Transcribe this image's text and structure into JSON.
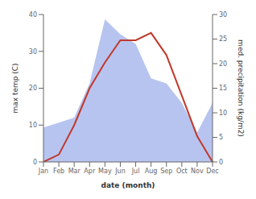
{
  "chart_data": {
    "type": "line",
    "categories": [
      "Jan",
      "Feb",
      "Mar",
      "Apr",
      "May",
      "Jun",
      "Jul",
      "Aug",
      "Sep",
      "Oct",
      "Nov",
      "Dec"
    ],
    "series": [
      {
        "type": "area",
        "axis": "y2",
        "color": "#b8c4f0",
        "values": [
          7,
          8,
          9,
          16,
          29,
          26,
          24,
          17,
          16,
          12,
          6,
          12
        ]
      },
      {
        "type": "line",
        "color": "#c0392b",
        "values": [
          0,
          2,
          10,
          20,
          27,
          33,
          33,
          35,
          29,
          18,
          7,
          0
        ]
      }
    ],
    "xlabel": "date (month)",
    "ylabel": "max temp (C)",
    "y2label": "med. precipitation (kg/m2)",
    "ylim": [
      0,
      40
    ],
    "yticks": [
      0,
      10,
      20,
      30,
      40
    ],
    "y2lim": [
      0,
      30
    ],
    "y2ticks": [
      0,
      5,
      10,
      15,
      20,
      25,
      30
    ],
    "grid": false
  }
}
